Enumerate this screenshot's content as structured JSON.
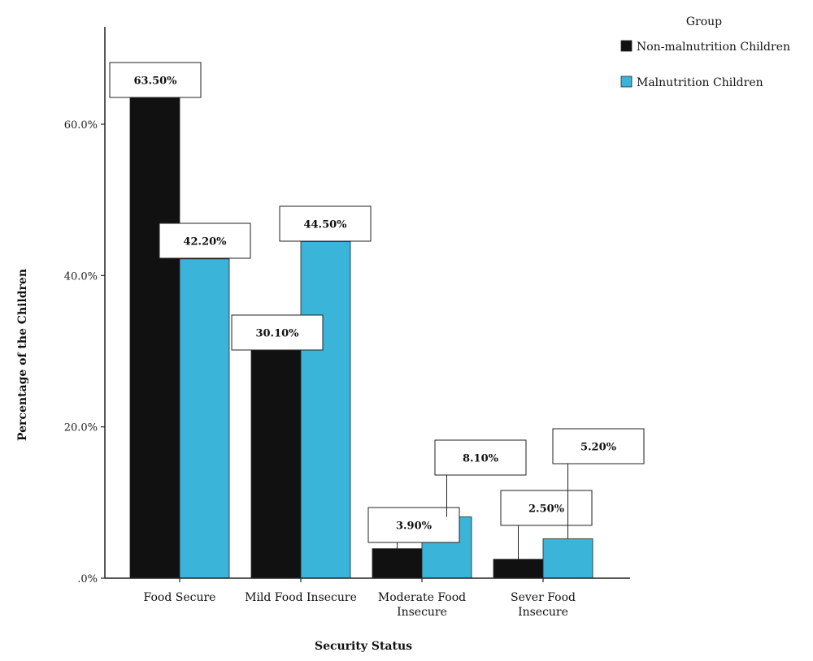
{
  "chart_data": {
    "type": "bar",
    "xlabel": "Security Status",
    "ylabel": "Percentage of the Children",
    "ylim": [
      0,
      70
    ],
    "yticks": [
      0,
      20,
      40,
      60
    ],
    "ytick_labels": [
      ".0%",
      "20.0%",
      "40.0%",
      "60.0%"
    ],
    "grid": false,
    "categories": [
      [
        "Food Secure"
      ],
      [
        "Mild Food Insecure"
      ],
      [
        "Moderate Food",
        "Insecure"
      ],
      [
        "Sever Food",
        "Insecure"
      ]
    ],
    "series": [
      {
        "name": "Non-malnutrition Children",
        "color": "#111111",
        "values": [
          63.5,
          30.1,
          3.9,
          2.5
        ],
        "labels": [
          "63.50%",
          "30.10%",
          "3.90%",
          "2.50%"
        ]
      },
      {
        "name": "Malnutrition Children",
        "color": "#3ab5d9",
        "values": [
          42.2,
          44.5,
          8.1,
          5.2
        ],
        "labels": [
          "42.20%",
          "44.50%",
          "8.10%",
          "5.20%"
        ]
      }
    ],
    "legend": {
      "title": "Group",
      "placement": "top-right"
    }
  }
}
